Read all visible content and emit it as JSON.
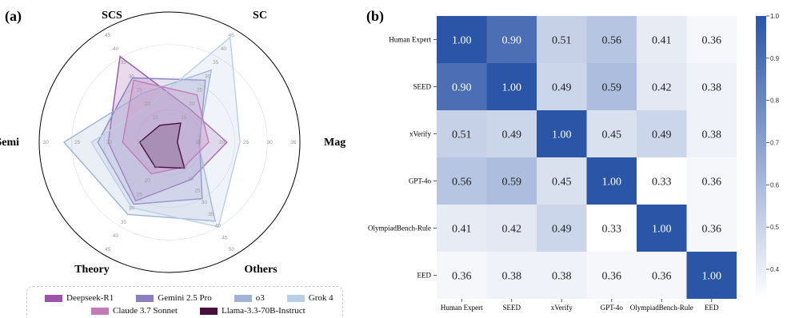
{
  "panels": {
    "a": "(a)",
    "b": "(b)"
  },
  "chart_data": [
    {
      "type": "radar",
      "axes": [
        "SC",
        "Mag",
        "Others",
        "Theory",
        "Semi",
        "SCS"
      ],
      "radial_ticks": {
        "SC": [
          "15",
          "20",
          "25",
          "30",
          "35",
          "40",
          "45"
        ],
        "Mag": [
          "15",
          "20",
          "25",
          "30",
          "35"
        ],
        "Others": [
          "15",
          "20",
          "25",
          "30",
          "35",
          "40",
          "45",
          "50"
        ],
        "Theory": [
          "15",
          "20",
          "25",
          "30",
          "35",
          "40",
          "45"
        ],
        "Semi": [
          "15",
          "20",
          "25",
          "30"
        ],
        "SCS": [
          "15",
          "20",
          "25",
          "30",
          "35",
          "40",
          "45"
        ]
      },
      "series": [
        {
          "name": "Deepseek-R1",
          "color": "#9b55a8",
          "values": [
            0.3,
            0.44,
            0.33,
            0.52,
            0.47,
            0.76
          ]
        },
        {
          "name": "Gemini 2.5 Pro",
          "color": "#8b7fbf",
          "values": [
            0.55,
            0.23,
            0.5,
            0.55,
            0.55,
            0.57
          ]
        },
        {
          "name": "o3",
          "color": "#9fb3d3",
          "values": [
            0.64,
            0.22,
            0.7,
            0.64,
            0.81,
            0.43
          ]
        },
        {
          "name": "Grok 4",
          "color": "#b9cfe6",
          "values": [
            0.93,
            0.54,
            0.75,
            0.58,
            0.6,
            0.32
          ]
        },
        {
          "name": "Claude 3.7 Sonnet",
          "color": "#c37ab8",
          "values": [
            0.42,
            0.3,
            0.22,
            0.28,
            0.36,
            0.55
          ]
        },
        {
          "name": "Llama-3.3-70B-Instruct",
          "color": "#4a0f3f",
          "values": [
            0.17,
            0.06,
            0.23,
            0.22,
            0.23,
            0.15
          ]
        }
      ]
    },
    {
      "type": "heatmap",
      "rows": [
        "Human Expert",
        "SEED",
        "xVerify",
        "GPT-4o",
        "OlympiadBench-Rule",
        "EED"
      ],
      "columns": [
        "Human Expert",
        "SEED",
        "xVerify",
        "GPT-4o",
        "OlympiadBench-Rule",
        "EED"
      ],
      "values": [
        [
          1.0,
          0.9,
          0.51,
          0.56,
          0.41,
          0.36
        ],
        [
          0.9,
          1.0,
          0.49,
          0.59,
          0.42,
          0.38
        ],
        [
          0.51,
          0.49,
          1.0,
          0.45,
          0.49,
          0.38
        ],
        [
          0.56,
          0.59,
          0.45,
          1.0,
          0.33,
          0.36
        ],
        [
          0.41,
          0.42,
          0.49,
          0.33,
          1.0,
          0.36
        ],
        [
          0.36,
          0.38,
          0.38,
          0.36,
          0.36,
          1.0
        ]
      ],
      "colorbar": {
        "min": 0.33,
        "max": 1.0,
        "ticks": [
          "0.4",
          "0.5",
          "0.6",
          "0.7",
          "0.8",
          "0.9",
          "1.0"
        ],
        "low_color": "#ffffff",
        "high_color": "#2b55a7"
      }
    }
  ]
}
